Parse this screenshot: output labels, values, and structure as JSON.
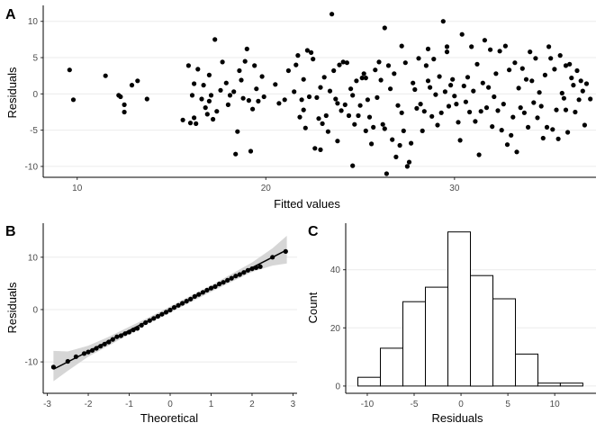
{
  "chart_data": [
    {
      "panel": "A",
      "type": "scatter",
      "xlabel": "Fitted values",
      "ylabel": "Residuals",
      "xlim": [
        8.2,
        37.5
      ],
      "ylim": [
        -11.5,
        12.2
      ],
      "xticks": [
        10,
        20,
        30
      ],
      "yticks": [
        -10,
        -5,
        0,
        5,
        10
      ],
      "grid": "horizontal",
      "points": [
        [
          9.6,
          3.3
        ],
        [
          9.8,
          -0.8
        ],
        [
          11.5,
          2.5
        ],
        [
          12.2,
          -0.2
        ],
        [
          12.3,
          -0.4
        ],
        [
          12.5,
          -1.5
        ],
        [
          12.5,
          -2.5
        ],
        [
          12.9,
          1.2
        ],
        [
          13.2,
          1.8
        ],
        [
          13.7,
          -0.7
        ],
        [
          15.6,
          -3.6
        ],
        [
          15.9,
          3.9
        ],
        [
          16.0,
          -4.0
        ],
        [
          16.1,
          -0.2
        ],
        [
          16.2,
          -3.3
        ],
        [
          16.2,
          1.4
        ],
        [
          16.3,
          -4.1
        ],
        [
          16.4,
          3.4
        ],
        [
          16.6,
          -0.7
        ],
        [
          16.7,
          1.2
        ],
        [
          16.8,
          -1.9
        ],
        [
          16.9,
          -2.8
        ],
        [
          17.0,
          2.6
        ],
        [
          17.0,
          -1.0
        ],
        [
          17.1,
          -0.2
        ],
        [
          17.2,
          -3.5
        ],
        [
          17.3,
          7.5
        ],
        [
          17.4,
          -2.4
        ],
        [
          17.6,
          0.5
        ],
        [
          17.7,
          4.4
        ],
        [
          17.9,
          1.5
        ],
        [
          18.0,
          -1.5
        ],
        [
          18.1,
          -0.2
        ],
        [
          18.3,
          0.3
        ],
        [
          18.4,
          -8.3
        ],
        [
          18.5,
          -5.2
        ],
        [
          18.6,
          3.2
        ],
        [
          18.7,
          1.9
        ],
        [
          18.8,
          -0.6
        ],
        [
          18.9,
          4.5
        ],
        [
          19.0,
          6.2
        ],
        [
          19.1,
          -0.9
        ],
        [
          19.2,
          -7.9
        ],
        [
          19.3,
          -2.1
        ],
        [
          19.4,
          3.9
        ],
        [
          19.5,
          0.7
        ],
        [
          19.6,
          -1.0
        ],
        [
          19.8,
          2.4
        ],
        [
          19.9,
          -0.4
        ],
        [
          20.5,
          1.3
        ],
        [
          21.0,
          -0.8
        ],
        [
          21.2,
          3.2
        ],
        [
          21.5,
          0.3
        ],
        [
          21.7,
          5.3
        ],
        [
          21.8,
          -3.2
        ],
        [
          21.9,
          -0.8
        ],
        [
          22.0,
          2.0
        ],
        [
          22.1,
          -4.7
        ],
        [
          22.2,
          6.0
        ],
        [
          22.3,
          -0.4
        ],
        [
          22.4,
          5.7
        ],
        [
          22.5,
          4.8
        ],
        [
          22.6,
          -7.5
        ],
        [
          22.7,
          -0.5
        ],
        [
          22.8,
          -3.4
        ],
        [
          22.9,
          -7.7
        ],
        [
          22.9,
          0.9
        ],
        [
          23.0,
          -4.1
        ],
        [
          23.1,
          2.3
        ],
        [
          23.2,
          -3.0
        ],
        [
          23.3,
          -5.2
        ],
        [
          23.4,
          0.4
        ],
        [
          23.5,
          11.0
        ],
        [
          23.6,
          3.2
        ],
        [
          23.7,
          -0.7
        ],
        [
          23.8,
          -1.3
        ],
        [
          23.9,
          4.0
        ],
        [
          24.0,
          -2.3
        ],
        [
          24.1,
          4.4
        ],
        [
          24.2,
          -1.5
        ],
        [
          24.3,
          4.3
        ],
        [
          24.4,
          -3.0
        ],
        [
          24.5,
          0.7
        ],
        [
          24.6,
          -0.2
        ],
        [
          24.7,
          -4.2
        ],
        [
          24.8,
          1.8
        ],
        [
          24.9,
          -3.0
        ],
        [
          25.0,
          -1.6
        ],
        [
          25.1,
          2.2
        ],
        [
          25.2,
          2.8
        ],
        [
          25.3,
          -5.1
        ],
        [
          25.4,
          -0.8
        ],
        [
          25.5,
          -3.2
        ],
        [
          25.6,
          -6.9
        ],
        [
          25.7,
          -4.6
        ],
        [
          25.8,
          3.3
        ],
        [
          25.9,
          -0.5
        ],
        [
          26.0,
          4.4
        ],
        [
          26.1,
          1.9
        ],
        [
          26.2,
          -4.2
        ],
        [
          26.3,
          -4.8
        ],
        [
          26.4,
          -11.0
        ],
        [
          26.5,
          3.9
        ],
        [
          26.6,
          0.7
        ],
        [
          26.7,
          -6.3
        ],
        [
          26.8,
          2.8
        ],
        [
          26.9,
          -8.7
        ],
        [
          27.0,
          -1.6
        ],
        [
          27.1,
          -7.1
        ],
        [
          27.2,
          -2.6
        ],
        [
          27.3,
          -5.1
        ],
        [
          27.4,
          4.3
        ],
        [
          27.5,
          -10.0
        ],
        [
          27.6,
          -9.4
        ],
        [
          27.7,
          -6.8
        ],
        [
          27.8,
          1.5
        ],
        [
          27.9,
          0.6
        ],
        [
          28.0,
          -2.0
        ],
        [
          28.1,
          4.9
        ],
        [
          28.2,
          -1.4
        ],
        [
          28.3,
          -5.1
        ],
        [
          28.4,
          -2.4
        ],
        [
          28.5,
          3.9
        ],
        [
          28.6,
          1.8
        ],
        [
          28.7,
          0.9
        ],
        [
          28.8,
          -3.1
        ],
        [
          28.9,
          4.8
        ],
        [
          29.0,
          -0.1
        ],
        [
          29.1,
          -4.3
        ],
        [
          29.2,
          2.4
        ],
        [
          29.3,
          -2.6
        ],
        [
          29.4,
          10.0
        ],
        [
          29.5,
          0.3
        ],
        [
          29.6,
          5.8
        ],
        [
          29.7,
          -1.7
        ],
        [
          29.8,
          1.2
        ],
        [
          29.9,
          2.0
        ],
        [
          30.0,
          -0.3
        ],
        [
          30.1,
          -1.4
        ],
        [
          30.2,
          -3.9
        ],
        [
          30.3,
          -6.4
        ],
        [
          30.4,
          8.2
        ],
        [
          30.5,
          1.1
        ],
        [
          30.6,
          -1.1
        ],
        [
          30.7,
          2.3
        ],
        [
          30.8,
          -2.5
        ],
        [
          30.9,
          6.5
        ],
        [
          31.0,
          0.4
        ],
        [
          31.1,
          -3.8
        ],
        [
          31.2,
          4.1
        ],
        [
          31.3,
          -8.4
        ],
        [
          31.4,
          -2.4
        ],
        [
          31.5,
          1.5
        ],
        [
          31.6,
          7.4
        ],
        [
          31.7,
          -1.9
        ],
        [
          31.8,
          0.9
        ],
        [
          31.9,
          6.1
        ],
        [
          32.0,
          -4.5
        ],
        [
          32.1,
          -0.4
        ],
        [
          32.2,
          2.8
        ],
        [
          32.3,
          -2.3
        ],
        [
          32.4,
          5.9
        ],
        [
          32.5,
          -5.0
        ],
        [
          32.6,
          -1.4
        ],
        [
          32.7,
          6.6
        ],
        [
          32.8,
          -7.0
        ],
        [
          32.9,
          3.3
        ],
        [
          33.0,
          -5.7
        ],
        [
          33.1,
          -3.2
        ],
        [
          33.2,
          4.3
        ],
        [
          33.3,
          -8.0
        ],
        [
          33.4,
          0.8
        ],
        [
          33.5,
          -1.9
        ],
        [
          33.6,
          3.5
        ],
        [
          33.7,
          -2.6
        ],
        [
          33.8,
          2.0
        ],
        [
          33.9,
          -4.6
        ],
        [
          34.0,
          5.8
        ],
        [
          34.1,
          1.8
        ],
        [
          34.2,
          -1.2
        ],
        [
          34.3,
          4.9
        ],
        [
          34.4,
          -3.3
        ],
        [
          34.5,
          0.2
        ],
        [
          34.6,
          -1.7
        ],
        [
          34.7,
          -6.1
        ],
        [
          34.8,
          2.6
        ],
        [
          34.9,
          -4.6
        ],
        [
          35.0,
          6.5
        ],
        [
          35.1,
          4.9
        ],
        [
          35.2,
          -4.9
        ],
        [
          35.3,
          3.4
        ],
        [
          35.4,
          -2.2
        ],
        [
          35.5,
          -6.2
        ],
        [
          35.6,
          5.3
        ],
        [
          35.7,
          0.1
        ],
        [
          35.8,
          -0.6
        ],
        [
          35.9,
          3.9
        ],
        [
          36.0,
          -5.3
        ],
        [
          36.1,
          4.1
        ],
        [
          36.2,
          2.2
        ],
        [
          36.3,
          1.2
        ],
        [
          36.4,
          -2.5
        ],
        [
          36.5,
          3.2
        ],
        [
          36.6,
          -0.8
        ],
        [
          36.7,
          1.8
        ],
        [
          36.8,
          0.4
        ],
        [
          36.9,
          -4.3
        ],
        [
          37.0,
          1.4
        ],
        [
          35.9,
          -2.2
        ],
        [
          37.2,
          -0.7
        ],
        [
          21.6,
          4.0
        ],
        [
          22.0,
          -2.2
        ],
        [
          23.8,
          -6.5
        ],
        [
          24.6,
          -9.9
        ],
        [
          25.3,
          2.2
        ],
        [
          26.3,
          9.1
        ],
        [
          27.2,
          6.6
        ],
        [
          28.6,
          6.2
        ],
        [
          29.6,
          6.5
        ],
        [
          20.7,
          -1.3
        ]
      ]
    },
    {
      "panel": "B",
      "type": "line",
      "xlabel": "Theoretical",
      "ylabel": "Residuals",
      "xlim": [
        -3.1,
        3.1
      ],
      "ylim": [
        -16,
        16.5
      ],
      "xticks": [
        -3,
        -2,
        -1,
        0,
        1,
        2,
        3
      ],
      "yticks": [
        -10,
        0,
        10
      ],
      "grid": "horizontal",
      "reference_line": {
        "intercept": 0,
        "slope": 4.0
      },
      "band": {
        "x": [
          -2.85,
          -2.5,
          -2.0,
          -1.5,
          -1.0,
          -0.5,
          0.0,
          0.5,
          1.0,
          1.5,
          2.0,
          2.5,
          2.85
        ],
        "lower": [
          -13.7,
          -11.7,
          -9.0,
          -6.9,
          -4.7,
          -2.5,
          -0.6,
          1.4,
          3.4,
          5.3,
          7.2,
          8.4,
          8.8
        ],
        "upper": [
          -7.9,
          -8.0,
          -6.9,
          -5.2,
          -3.3,
          -1.4,
          0.6,
          2.6,
          4.6,
          6.8,
          9.0,
          11.7,
          14.1
        ]
      },
      "points": [
        [
          -2.85,
          -11.0
        ],
        [
          -2.5,
          -9.9
        ],
        [
          -2.3,
          -9.0
        ],
        [
          -2.1,
          -8.4
        ],
        [
          -2.0,
          -8.1
        ],
        [
          -1.9,
          -7.8
        ],
        [
          -1.8,
          -7.4
        ],
        [
          -1.7,
          -7.0
        ],
        [
          -1.6,
          -6.6
        ],
        [
          -1.5,
          -6.2
        ],
        [
          -1.4,
          -5.7
        ],
        [
          -1.3,
          -5.2
        ],
        [
          -1.2,
          -5.0
        ],
        [
          -1.1,
          -4.6
        ],
        [
          -1.0,
          -4.3
        ],
        [
          -0.9,
          -3.9
        ],
        [
          -0.8,
          -3.6
        ],
        [
          -0.7,
          -3.0
        ],
        [
          -0.6,
          -2.5
        ],
        [
          -0.5,
          -2.1
        ],
        [
          -0.4,
          -1.7
        ],
        [
          -0.3,
          -1.3
        ],
        [
          -0.2,
          -0.9
        ],
        [
          -0.1,
          -0.5
        ],
        [
          0.0,
          -0.1
        ],
        [
          0.1,
          0.4
        ],
        [
          0.2,
          0.8
        ],
        [
          0.3,
          1.2
        ],
        [
          0.4,
          1.6
        ],
        [
          0.5,
          2.0
        ],
        [
          0.6,
          2.5
        ],
        [
          0.7,
          2.9
        ],
        [
          0.8,
          3.3
        ],
        [
          0.9,
          3.7
        ],
        [
          1.0,
          4.1
        ],
        [
          1.1,
          4.4
        ],
        [
          1.2,
          4.9
        ],
        [
          1.3,
          5.2
        ],
        [
          1.4,
          5.6
        ],
        [
          1.5,
          6.0
        ],
        [
          1.6,
          6.4
        ],
        [
          1.7,
          6.7
        ],
        [
          1.8,
          7.1
        ],
        [
          1.9,
          7.5
        ],
        [
          2.0,
          7.8
        ],
        [
          2.1,
          8.0
        ],
        [
          2.2,
          8.2
        ],
        [
          2.5,
          10.0
        ],
        [
          2.82,
          11.1
        ]
      ]
    },
    {
      "panel": "C",
      "type": "bar",
      "xlabel": "Residuals",
      "ylabel": "Count",
      "xlim": [
        -12.3,
        14.4
      ],
      "ylim": [
        -2.5,
        56
      ],
      "xticks": [
        -10,
        -5,
        0,
        5,
        10
      ],
      "yticks": [
        0,
        20,
        40
      ],
      "grid": "horizontal",
      "bin_edges": [
        -11,
        -8.6,
        -6.2,
        -3.8,
        -1.4,
        1.0,
        3.4,
        5.8,
        8.2,
        10.6,
        13.0
      ],
      "counts": [
        3,
        13,
        29,
        34,
        53,
        38,
        30,
        11,
        1,
        1
      ]
    }
  ],
  "panel_tags": [
    "A",
    "B",
    "C"
  ]
}
